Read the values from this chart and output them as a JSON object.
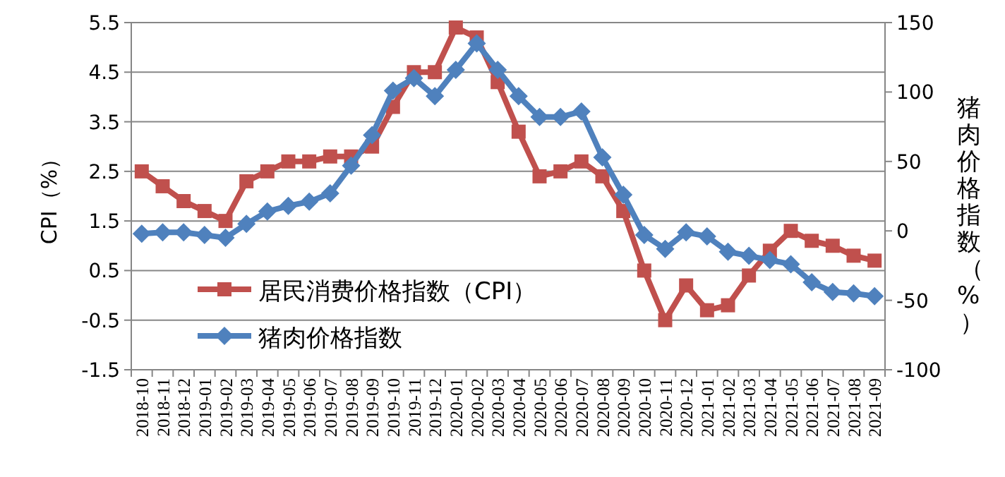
{
  "chart_data": {
    "type": "line",
    "ylabel": "CPI（%）",
    "y2label": "猪肉价格指数（%）",
    "categories": [
      "2018-10",
      "2018-11",
      "2018-12",
      "2019-01",
      "2019-02",
      "2019-03",
      "2019-04",
      "2019-05",
      "2019-06",
      "2019-07",
      "2019-08",
      "2019-09",
      "2019-10",
      "2019-11",
      "2019-12",
      "2020-01",
      "2020-02",
      "2020-03",
      "2020-04",
      "2020-05",
      "2020-06",
      "2020-07",
      "2020-08",
      "2020-09",
      "2020-10",
      "2020-11",
      "2020-12",
      "2021-01",
      "2021-02",
      "2021-03",
      "2021-04",
      "2021-05",
      "2021-06",
      "2021-07",
      "2021-08",
      "2021-09"
    ],
    "series": [
      {
        "name": "居民消费价格指数（CPI）",
        "color": "#c0504d",
        "marker": "square",
        "values": [
          2.5,
          2.2,
          1.9,
          1.7,
          1.5,
          2.3,
          2.5,
          2.7,
          2.7,
          2.8,
          2.8,
          3.0,
          3.8,
          4.5,
          4.5,
          5.4,
          5.2,
          4.3,
          3.3,
          2.4,
          2.5,
          2.7,
          2.4,
          1.7,
          0.5,
          -0.5,
          0.2,
          -0.3,
          -0.2,
          0.4,
          0.9,
          1.3,
          1.1,
          1.0,
          0.8,
          0.7
        ]
      },
      {
        "name": "猪肉价格指数",
        "color": "#4f81bd",
        "marker": "diamond",
        "axis": "y2",
        "values": [
          -2,
          -1,
          -1,
          -3,
          -5,
          5,
          14,
          18,
          21,
          27,
          47,
          69,
          101,
          110,
          97,
          116,
          135,
          116,
          97,
          82,
          82,
          86,
          53,
          26,
          -3,
          -13,
          -1,
          -4,
          -15,
          -18,
          -21,
          -24,
          -37,
          -44,
          -45,
          -47
        ]
      }
    ],
    "ylim": [
      -1.5,
      5.5
    ],
    "yticks": [
      -1.5,
      -0.5,
      0.5,
      1.5,
      2.5,
      3.5,
      4.5,
      5.5
    ],
    "y2lim": [
      -100,
      150
    ],
    "y2ticks": [
      -100,
      -50,
      0,
      50,
      100,
      150
    ],
    "grid": "y",
    "legend": "bottom left"
  }
}
